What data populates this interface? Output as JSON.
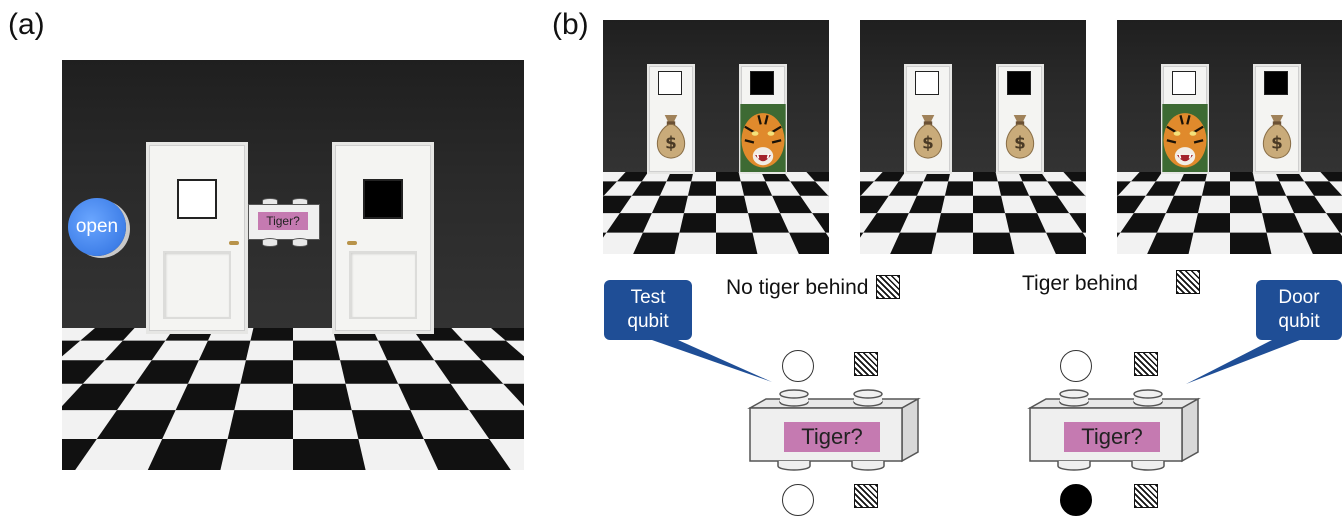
{
  "panels": {
    "a_label": "(a)",
    "b_label": "(b)"
  },
  "panel_a": {
    "open_button": "open",
    "brick_label": "Tiger?",
    "left_window": "white",
    "right_window": "black"
  },
  "panel_b": {
    "scenes": [
      {
        "left_door": "money",
        "right_door": "tiger"
      },
      {
        "left_door": "money",
        "right_door": "money"
      },
      {
        "left_door": "tiger",
        "right_door": "money"
      }
    ],
    "legend": {
      "no_tiger": "No tiger behind",
      "tiger": "Tiger behind"
    },
    "callouts": {
      "test_qubit": "Test\nqubit",
      "door_qubit": "Door\nqubit"
    },
    "bricks": [
      {
        "label": "Tiger?",
        "input_state": "white",
        "output_state": "white"
      },
      {
        "label": "Tiger?",
        "input_state": "white",
        "output_state": "black"
      }
    ]
  },
  "colors": {
    "callout": "#1f4e96",
    "brick_label": "#c57ab1",
    "open_button": "#3f7fe8"
  }
}
